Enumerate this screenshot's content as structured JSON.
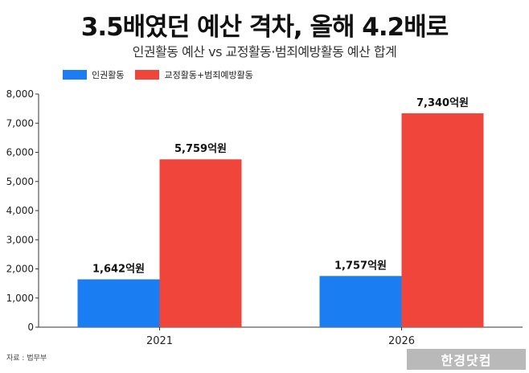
{
  "title": "3.5배였던 예산 격차, 올해 4.2배로",
  "subtitle": "인권활동 예산 vs 교정활동·범죄예방활동 예산 합계",
  "source": "자료 : 법무부",
  "watermark": "한경닷컴",
  "colors": {
    "series_1": "#1a7ef2",
    "series_2": "#f0453a"
  },
  "chart_data": {
    "type": "bar",
    "categories": [
      "2021",
      "2026"
    ],
    "series": [
      {
        "name": "인권활동",
        "values": [
          1642,
          1757
        ],
        "labels": [
          "1,642억원",
          "1,757억원"
        ]
      },
      {
        "name": "교정활동+범죄예방활동",
        "values": [
          5759,
          7340
        ],
        "labels": [
          "5,759억원",
          "7,340억원"
        ]
      }
    ],
    "ylim": [
      0,
      8000
    ],
    "yticks": [
      "0",
      "1,000",
      "2,000",
      "3,000",
      "4,000",
      "5,000",
      "6,000",
      "7,000",
      "8,000"
    ],
    "legend_position": "top-left",
    "grid": false
  }
}
